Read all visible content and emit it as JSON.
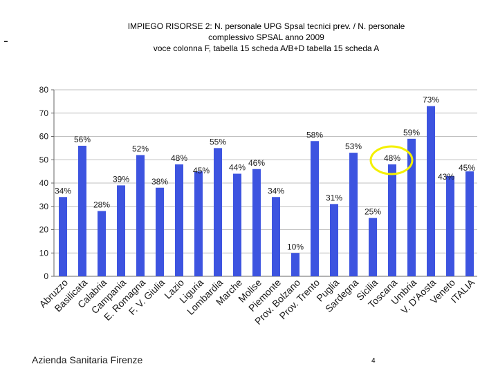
{
  "page": {
    "footer_org": "Azienda Sanitaria Firenze",
    "page_number": "4"
  },
  "chart_data": {
    "type": "bar",
    "title_lines": [
      "IMPIEGO RISORSE 2: N. personale UPG Spsal tecnici prev. /  N. personale",
      "complessivo SPSAL anno 2009",
      "voce colonna F, tabella 15 scheda A/B+D tabella 15 scheda A"
    ],
    "categories": [
      "Abruzzo",
      "Basilicata",
      "Calabria",
      "Campania",
      "E. Romagna",
      "F. V. Giulia",
      "Lazio",
      "Liguria",
      "Lombardia",
      "Marche",
      "Molise",
      "Piemonte",
      "Prov. Bolzano",
      "Prov. Trento",
      "Puglia",
      "Sardegna",
      "Sicilia",
      "Toscana",
      "Umbria",
      "V. D'Aosta",
      "Veneto",
      "ITALIA"
    ],
    "values": [
      34,
      56,
      28,
      39,
      52,
      38,
      48,
      45,
      55,
      44,
      46,
      34,
      10,
      58,
      31,
      53,
      25,
      48,
      59,
      73,
      43,
      45
    ],
    "labels": [
      "34%",
      "56%",
      "28%",
      "39%",
      "52%",
      "38%",
      "48%",
      "45%",
      "55%",
      "44%",
      "46%",
      "34%",
      "10%",
      "58%",
      "31%",
      "53%",
      "25%",
      "48%",
      "59%",
      "73%",
      "43%",
      "45%"
    ],
    "yticks": [
      "0",
      "10",
      "20",
      "30",
      "40",
      "50",
      "60",
      "70",
      "80"
    ],
    "ylim": [
      0,
      80
    ],
    "grid": true,
    "highlight_category": "Toscana",
    "colors": {
      "bar": "#3d54e0",
      "grid": "#bfbfbf",
      "highlight_ring": "#f4f000",
      "axis_text": "#1a1a1a"
    }
  }
}
